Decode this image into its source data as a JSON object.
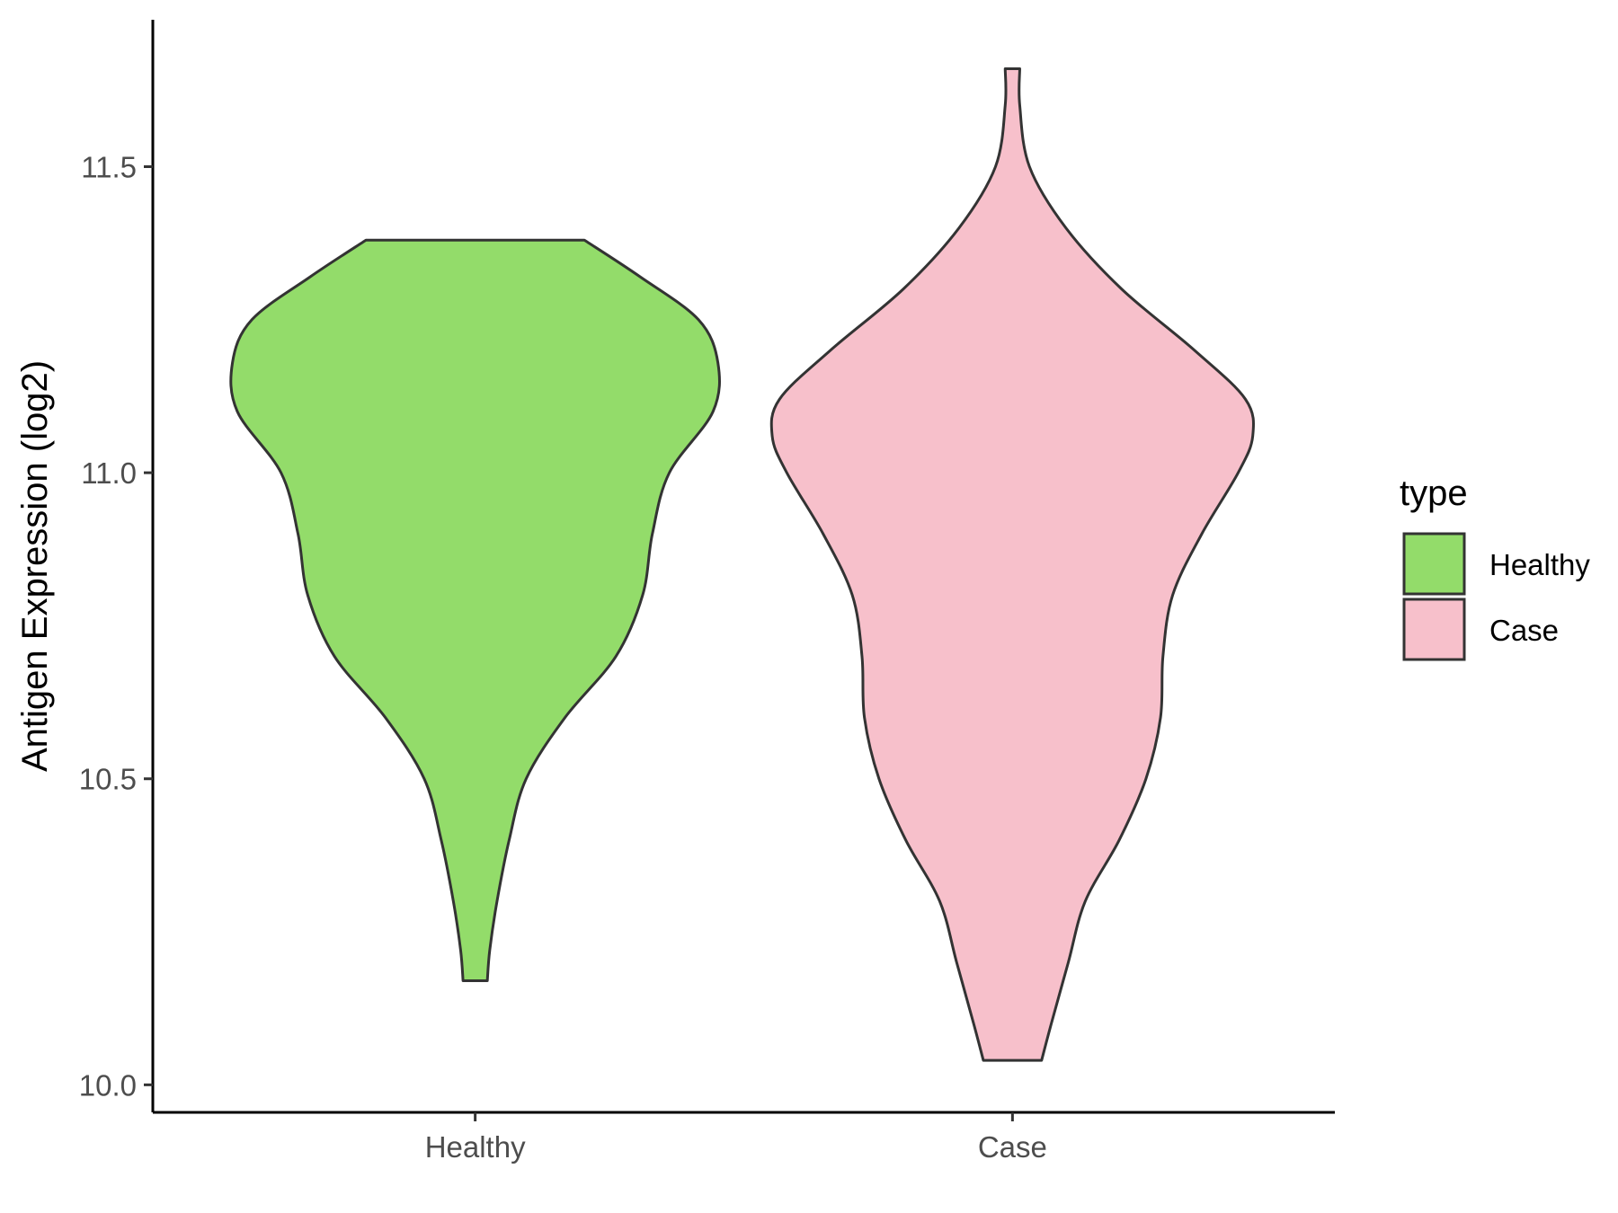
{
  "chart_data": {
    "type": "violin",
    "ylabel": "Antigen Expression (log2)",
    "xlabel": "",
    "categories": [
      "Healthy",
      "Case"
    ],
    "ylim": [
      9.955,
      11.74
    ],
    "yticks": [
      10.0,
      10.5,
      11.0,
      11.5
    ],
    "ytick_labels": [
      "10.0",
      "10.5",
      "11.0",
      "11.5"
    ],
    "grid": false,
    "legend": {
      "title": "type",
      "position": "right",
      "entries": [
        {
          "label": "Healthy",
          "color": "#93DC6A"
        },
        {
          "label": "Case",
          "color": "#F7C0CB"
        }
      ]
    },
    "series": [
      {
        "name": "Healthy",
        "color": "#93DC6A",
        "min": 10.17,
        "max": 11.38,
        "profile": [
          [
            10.17,
            0.05
          ],
          [
            10.22,
            0.06
          ],
          [
            10.3,
            0.09
          ],
          [
            10.4,
            0.14
          ],
          [
            10.5,
            0.21
          ],
          [
            10.6,
            0.37
          ],
          [
            10.7,
            0.58
          ],
          [
            10.8,
            0.69
          ],
          [
            10.9,
            0.73
          ],
          [
            11.0,
            0.8
          ],
          [
            11.1,
            0.98
          ],
          [
            11.18,
            1.0
          ],
          [
            11.25,
            0.92
          ],
          [
            11.32,
            0.68
          ],
          [
            11.38,
            0.45
          ]
        ]
      },
      {
        "name": "Case",
        "color": "#F7C0CB",
        "min": 10.04,
        "max": 11.66,
        "profile": [
          [
            10.04,
            0.12
          ],
          [
            10.1,
            0.16
          ],
          [
            10.2,
            0.23
          ],
          [
            10.3,
            0.3
          ],
          [
            10.4,
            0.44
          ],
          [
            10.5,
            0.55
          ],
          [
            10.6,
            0.61
          ],
          [
            10.7,
            0.62
          ],
          [
            10.8,
            0.66
          ],
          [
            10.9,
            0.78
          ],
          [
            11.0,
            0.93
          ],
          [
            11.06,
            0.99
          ],
          [
            11.12,
            0.96
          ],
          [
            11.2,
            0.75
          ],
          [
            11.3,
            0.45
          ],
          [
            11.4,
            0.22
          ],
          [
            11.5,
            0.07
          ],
          [
            11.6,
            0.03
          ],
          [
            11.66,
            0.03
          ]
        ]
      }
    ]
  }
}
